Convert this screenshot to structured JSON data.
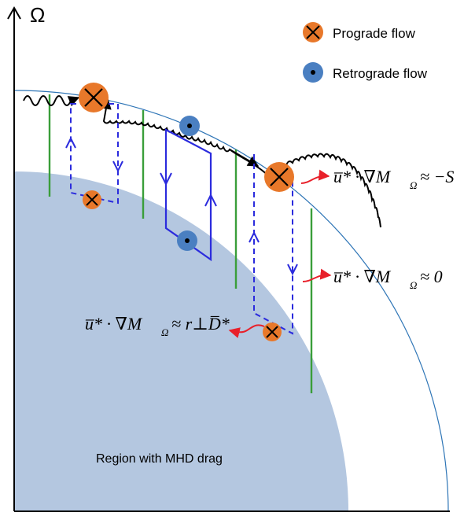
{
  "axis": {
    "omega_label": "Ω"
  },
  "legend": {
    "prograde_label": "Prograde flow",
    "retrograde_label": "Retrograde flow"
  },
  "region_label": "Region with MHD drag",
  "equations": {
    "eq1_lhs": "u̅* · ∇M",
    "eq1_sub": "Ω",
    "eq1_rhs": "≈ −S",
    "eq2_lhs": "u̅* · ∇M",
    "eq2_sub": "Ω",
    "eq2_rhs": "≈ 0",
    "eq3_lhs": "u̅* · ∇M",
    "eq3_sub": "Ω",
    "eq3_rhs": "≈ r⊥D̅*"
  },
  "colors": {
    "drag_region": "#b4c7e0",
    "outer_arc": "#2e75b6",
    "green_lines": "#3a9e3a",
    "blue_flow": "#2b2bdd",
    "prograde": "#e8782a",
    "retrograde": "#4a7fc1",
    "red_arrow": "#e8202a"
  }
}
